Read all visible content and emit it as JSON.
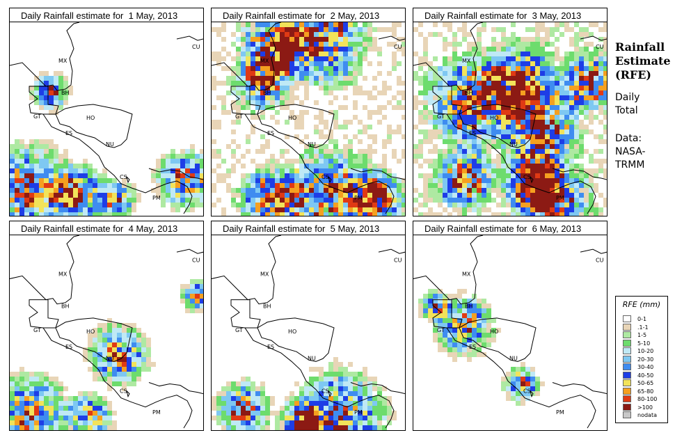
{
  "figure": {
    "title_lines": [
      "Rainfall",
      "Estimate",
      "(RFE)"
    ],
    "period_lines": [
      "Daily",
      "Total"
    ],
    "source_lines": [
      "Data:",
      "NASA-",
      "TRMM"
    ]
  },
  "panels": [
    {
      "title": "Daily Rainfall estimate for  1 May, 2013",
      "intensity": 0.25,
      "blobs": [
        [
          0.08,
          0.85,
          0.3
        ],
        [
          0.35,
          0.88,
          0.2
        ],
        [
          0.9,
          0.8,
          0.2
        ],
        [
          0.2,
          0.35,
          0.12
        ],
        [
          0.55,
          0.9,
          0.12
        ]
      ]
    },
    {
      "title": "Daily Rainfall estimate for  2 May, 2013",
      "intensity": 0.55,
      "blobs": [
        [
          0.3,
          0.12,
          0.22
        ],
        [
          0.55,
          0.08,
          0.3
        ],
        [
          0.25,
          0.3,
          0.18
        ],
        [
          0.6,
          0.88,
          0.3
        ],
        [
          0.3,
          0.9,
          0.22
        ],
        [
          0.85,
          0.9,
          0.18
        ]
      ]
    },
    {
      "title": "Daily Rainfall estimate for  3 May, 2013",
      "intensity": 0.65,
      "blobs": [
        [
          0.3,
          0.4,
          0.3
        ],
        [
          0.55,
          0.3,
          0.25
        ],
        [
          0.65,
          0.55,
          0.25
        ],
        [
          0.25,
          0.8,
          0.2
        ],
        [
          0.6,
          0.8,
          0.2
        ],
        [
          0.7,
          0.92,
          0.25
        ],
        [
          0.9,
          0.3,
          0.2
        ]
      ]
    },
    {
      "title": "Daily Rainfall estimate for  4 May, 2013",
      "intensity": 0.25,
      "blobs": [
        [
          0.55,
          0.6,
          0.2
        ],
        [
          0.1,
          0.9,
          0.25
        ],
        [
          0.4,
          0.92,
          0.15
        ],
        [
          0.95,
          0.3,
          0.1
        ]
      ]
    },
    {
      "title": "Daily Rainfall estimate for  5 May, 2013",
      "intensity": 0.35,
      "blobs": [
        [
          0.65,
          0.92,
          0.3
        ],
        [
          0.15,
          0.88,
          0.18
        ],
        [
          0.45,
          0.95,
          0.15
        ]
      ]
    },
    {
      "title": "Daily Rainfall estimate for  6 May, 2013",
      "intensity": 0.2,
      "blobs": [
        [
          0.25,
          0.45,
          0.2
        ],
        [
          0.55,
          0.75,
          0.12
        ],
        [
          0.1,
          0.35,
          0.1
        ]
      ]
    }
  ],
  "country_labels": [
    "MX",
    "BH",
    "GT",
    "HO",
    "ES",
    "NU",
    "CS",
    "PM",
    "CU"
  ],
  "legend": {
    "title": "RFE (mm)",
    "classes": [
      {
        "label": "0-1",
        "color": "#ffffff"
      },
      {
        "label": ".1-1",
        "color": "#e8d5b7"
      },
      {
        "label": "1-5",
        "color": "#aee9a2"
      },
      {
        "label": "5-10",
        "color": "#6ddc6d"
      },
      {
        "label": "10-20",
        "color": "#bfe9f5"
      },
      {
        "label": "20-30",
        "color": "#7ec8f2"
      },
      {
        "label": "30-40",
        "color": "#3f8cf0"
      },
      {
        "label": "40-50",
        "color": "#1e3de6"
      },
      {
        "label": "50-65",
        "color": "#f2e35a"
      },
      {
        "label": "65-80",
        "color": "#f5a020"
      },
      {
        "label": "80-100",
        "color": "#e03a14"
      },
      {
        "label": ">100",
        "color": "#8c1a14"
      },
      {
        "label": "nodata",
        "color": "#c8c8c8"
      }
    ]
  }
}
